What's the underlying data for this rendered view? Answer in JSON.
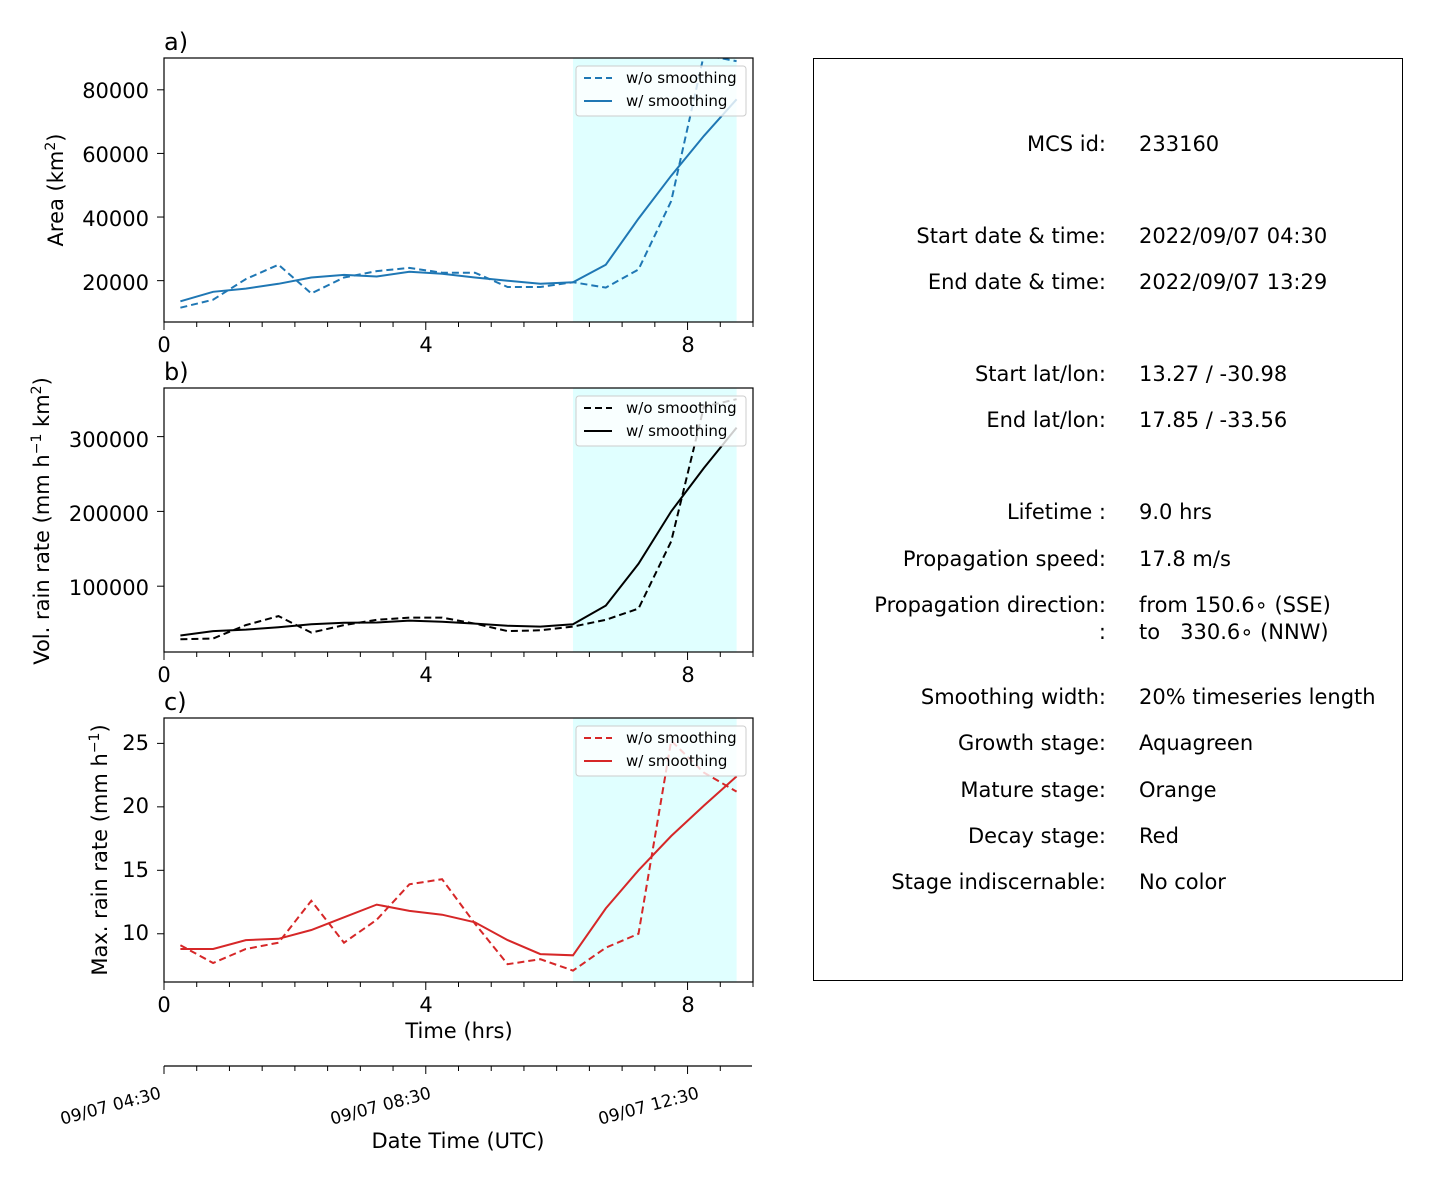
{
  "panels": [
    {
      "letter": "a)",
      "ylabel": "Area  (km",
      "ylabel_sup": "2",
      "ylabel_suffix": ")",
      "yticks": [
        "20000",
        "40000",
        "60000",
        "80000"
      ],
      "xticks": [
        "0",
        "4",
        "8"
      ]
    },
    {
      "letter": "b)",
      "ylabel": "Vol. rain rate (mm h",
      "ylabel_sup": "−1",
      "ylabel_mid": " km",
      "ylabel_sup2": "2",
      "ylabel_suffix": ")",
      "yticks": [
        "100000",
        "200000",
        "300000"
      ],
      "xticks": [
        "0",
        "4",
        "8"
      ]
    },
    {
      "letter": "c)",
      "ylabel": "Max. rain rate  (mm h",
      "ylabel_sup": "−1",
      "ylabel_suffix": ")",
      "yticks": [
        "10",
        "15",
        "20",
        "25"
      ],
      "xticks": [
        "0",
        "4",
        "8"
      ]
    }
  ],
  "legend": {
    "raw": "w/o smoothing",
    "smooth": "w/ smoothing"
  },
  "xlabel": "Time (hrs)",
  "datetime_axis": {
    "ticks": [
      "09/07 04:30",
      "09/07 08:30",
      "09/07 12:30"
    ],
    "label": "Date Time (UTC)"
  },
  "info": [
    {
      "label": "MCS id:",
      "value": "233160"
    },
    {
      "label": "Start date & time:",
      "value": "2022/09/07 04:30"
    },
    {
      "label": "End date & time:",
      "value": "2022/09/07 13:29"
    },
    {
      "label": "Start lat/lon:",
      "value": "13.27 / -30.98"
    },
    {
      "label": "End lat/lon:",
      "value": "17.85 / -33.56"
    },
    {
      "label": "Lifetime :",
      "value": "9.0 hrs"
    },
    {
      "label": "Propagation speed:",
      "value": "17.8 m/s"
    },
    {
      "label": "Propagation direction:",
      "value": "from 150.6∘ (SSE)"
    },
    {
      "label": ":",
      "value": "to   330.6∘ (NNW)"
    },
    {
      "label": "Smoothing width:",
      "value": "20% timeseries length"
    },
    {
      "label": "Growth stage:",
      "value": "Aquagreen"
    },
    {
      "label": "Mature stage:",
      "value": "Orange"
    },
    {
      "label": "Decay stage:",
      "value": "Red"
    },
    {
      "label": "Stage indiscernable:",
      "value": "No color"
    }
  ],
  "chart_data": [
    {
      "type": "line",
      "xlabel": "",
      "ylabel": "Area  (km2)",
      "xlim": [
        0,
        9
      ],
      "ylim": [
        7000,
        90000
      ],
      "color": "#1f77b4",
      "shade": {
        "x0": 6.25,
        "x1": 8.75,
        "color": "#e0ffff"
      },
      "x": [
        0.25,
        0.75,
        1.25,
        1.75,
        2.25,
        2.75,
        3.25,
        3.75,
        4.25,
        4.75,
        5.25,
        5.75,
        6.25,
        6.75,
        7.25,
        7.75,
        8.25,
        8.75
      ],
      "series": [
        {
          "name": "w/o smoothing",
          "style": "dashed",
          "values": [
            11500,
            14000,
            20500,
            25000,
            16000,
            21000,
            23000,
            24000,
            22500,
            22500,
            18000,
            18000,
            19500,
            17800,
            23500,
            45000,
            91000,
            89000
          ]
        },
        {
          "name": "w/ smoothing",
          "style": "solid",
          "values": [
            13500,
            16500,
            17500,
            19000,
            21000,
            21800,
            21300,
            22800,
            22200,
            21000,
            20000,
            19000,
            19500,
            25000,
            39500,
            53000,
            65500,
            77000
          ]
        }
      ]
    },
    {
      "type": "line",
      "xlabel": "",
      "ylabel": "Vol. rain rate (mm h−1 km2)",
      "xlim": [
        0,
        9
      ],
      "ylim": [
        12000,
        365000
      ],
      "color": "#000000",
      "shade": {
        "x0": 6.25,
        "x1": 8.75,
        "color": "#e0ffff"
      },
      "x": [
        0.25,
        0.75,
        1.25,
        1.75,
        2.25,
        2.75,
        3.25,
        3.75,
        4.25,
        4.75,
        5.25,
        5.75,
        6.25,
        6.75,
        7.25,
        7.75,
        8.25,
        8.75
      ],
      "series": [
        {
          "name": "w/o smoothing",
          "style": "dashed",
          "values": [
            29000,
            30000,
            48000,
            60000,
            38000,
            48000,
            55000,
            58000,
            58000,
            50000,
            40000,
            41000,
            46000,
            55000,
            70000,
            160000,
            340000,
            350000
          ]
        },
        {
          "name": "w/ smoothing",
          "style": "solid",
          "values": [
            34000,
            40000,
            42000,
            45000,
            49000,
            51000,
            51500,
            54000,
            52500,
            50000,
            47000,
            46000,
            49000,
            74000,
            130000,
            200000,
            258000,
            312000
          ]
        }
      ]
    },
    {
      "type": "line",
      "xlabel": "Time (hrs)",
      "ylabel": "Max. rain rate  (mm h−1)",
      "xlim": [
        0,
        9
      ],
      "ylim": [
        6.2,
        27
      ],
      "color": "#d62728",
      "shade": {
        "x0": 6.25,
        "x1": 8.75,
        "color": "#e0ffff"
      },
      "x": [
        0.25,
        0.75,
        1.25,
        1.75,
        2.25,
        2.75,
        3.25,
        3.75,
        4.25,
        4.75,
        5.25,
        5.75,
        6.25,
        6.75,
        7.25,
        7.75,
        8.25,
        8.75
      ],
      "series": [
        {
          "name": "w/o smoothing",
          "style": "dashed",
          "values": [
            9.1,
            7.7,
            8.8,
            9.3,
            12.6,
            9.3,
            11.1,
            13.9,
            14.3,
            10.8,
            7.6,
            8.0,
            7.1,
            8.9,
            10.0,
            25.2,
            22.7,
            21.2
          ]
        },
        {
          "name": "w/ smoothing",
          "style": "solid",
          "values": [
            8.8,
            8.8,
            9.5,
            9.6,
            10.3,
            11.3,
            12.3,
            11.8,
            11.5,
            10.9,
            9.5,
            8.4,
            8.3,
            12.0,
            15.0,
            17.7,
            20.1,
            22.4
          ]
        }
      ]
    }
  ]
}
